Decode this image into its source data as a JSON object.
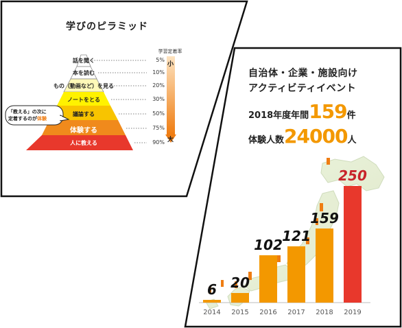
{
  "pyramid": {
    "title": "学びのピラミッド",
    "rate_header": "学習定着率",
    "small_label": "小",
    "big_label": "大",
    "levels": [
      {
        "label": "話を聞く",
        "percent": "5%",
        "color": "#ffffff"
      },
      {
        "label": "本を読む",
        "percent": "10%",
        "color": "#ffffff"
      },
      {
        "label": "もの（動画など）を見る",
        "percent": "20%",
        "color": "#fff9b8"
      },
      {
        "label": "ノートをとる",
        "percent": "30%",
        "color": "#fff200"
      },
      {
        "label": "議論する",
        "percent": "50%",
        "color": "#f8c400"
      },
      {
        "label": "体験する",
        "percent": "75%",
        "color": "#f08a1c"
      },
      {
        "label": "人に教える",
        "percent": "90%",
        "color": "#e8382c"
      }
    ],
    "callout": {
      "line1": "「教える」の次に",
      "line2_prefix": "定着するのが",
      "line2_highlight": "体験"
    },
    "colors": {
      "gradient_top": "#fde3c0",
      "gradient_bottom": "#ef7d12"
    }
  },
  "stats": {
    "title_line1": "自治体・企業・施設向け",
    "title_line2": "アクティビティイベント",
    "events_prefix": "2018年度年間",
    "events_value": "159",
    "events_suffix": "件",
    "people_prefix": "体験人数",
    "people_value": "24000",
    "people_suffix": "人"
  },
  "chart_data": {
    "type": "bar",
    "categories": [
      "2014",
      "2015",
      "2016",
      "2017",
      "2018",
      "2019"
    ],
    "values": [
      6,
      20,
      102,
      121,
      159,
      250
    ],
    "title": "",
    "xlabel": "",
    "ylabel": "",
    "ylim": [
      0,
      250
    ],
    "colors": [
      "#f39800",
      "#f39800",
      "#f39800",
      "#f39800",
      "#f39800",
      "#e8382c"
    ],
    "grid": false
  }
}
